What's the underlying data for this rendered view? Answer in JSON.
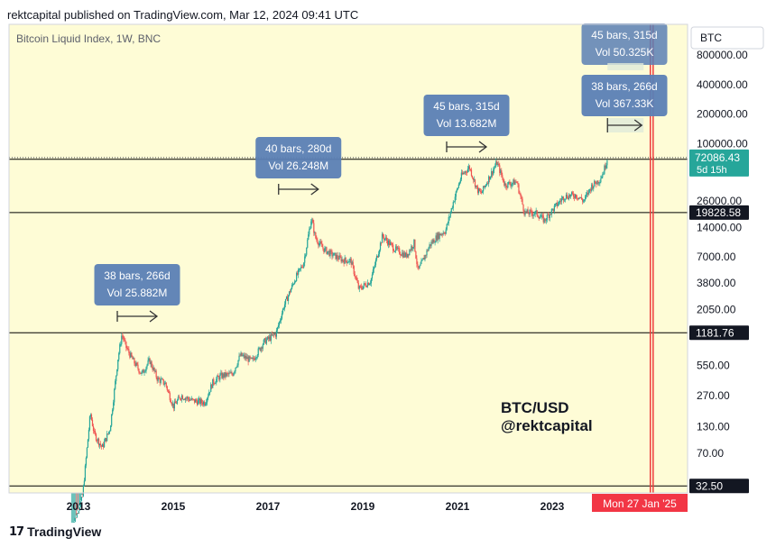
{
  "header": {
    "published_text": "rektcapital published on TradingView.com, Mar 12, 2024 09:41 UTC"
  },
  "footer": {
    "logo_glyph": "17",
    "brand": "TradingView"
  },
  "symbol_box": "BTC",
  "watermark": {
    "line1": "BTC/USD",
    "line2": "@rektcapital"
  },
  "colors": {
    "background": "#fefcd6",
    "up": "#26a69a",
    "down": "#ef5350",
    "callout": "#5b7fb5",
    "marker": "#ef3b3b"
  },
  "chart_data": {
    "type": "candlestick",
    "title": "Bitcoin Liquid Index, 1W, BNC",
    "scale": "log",
    "x_tick_labels": [
      "2013",
      "2015",
      "2017",
      "2019",
      "2021",
      "2023"
    ],
    "y_tick_labels": [
      {
        "label": "800000.00",
        "value": 800000
      },
      {
        "label": "400000.00",
        "value": 400000
      },
      {
        "label": "200000.00",
        "value": 200000
      },
      {
        "label": "100000.00",
        "value": 100000
      },
      {
        "label": "26000.00",
        "value": 26000
      },
      {
        "label": "14000.00",
        "value": 14000
      },
      {
        "label": "7000.00",
        "value": 7000
      },
      {
        "label": "3800.00",
        "value": 3800
      },
      {
        "label": "2050.00",
        "value": 2050
      },
      {
        "label": "550.00",
        "value": 550
      },
      {
        "label": "270.00",
        "value": 270
      },
      {
        "label": "130.00",
        "value": 130
      },
      {
        "label": "70.00",
        "value": 70
      }
    ],
    "horizontal_levels": [
      {
        "label": "69164.86",
        "value": 69164.86
      },
      {
        "label": "19828.58",
        "value": 19828.58
      },
      {
        "label": "1181.76",
        "value": 1181.76
      },
      {
        "label": "32.50",
        "value": 32.5
      }
    ],
    "current_price": {
      "label": "72086.43",
      "countdown": "5d 15h",
      "value": 72086.43
    },
    "cycle_annotations": [
      {
        "bars": "38 bars, 266d",
        "vol": "Vol 25.882M",
        "date": "2013-09"
      },
      {
        "bars": "40 bars, 280d",
        "vol": "Vol 26.248M",
        "date": "2017-03"
      },
      {
        "bars": "45 bars, 315d",
        "vol": "Vol 13.682M",
        "date": "2021-01"
      },
      {
        "bars": "38 bars, 266d",
        "vol": "Vol 367.33K",
        "date": "2024-05"
      },
      {
        "bars": "45 bars, 315d",
        "vol": "Vol 50.325K",
        "date": "2024-05"
      }
    ],
    "vertical_markers": [
      "2025-01-27",
      "2025-02-18"
    ],
    "date_label": "Mon 27 Jan '25",
    "price_path": [
      [
        "2012-11",
        11
      ],
      [
        "2013-02",
        25
      ],
      [
        "2013-04",
        180
      ],
      [
        "2013-05",
        110
      ],
      [
        "2013-07",
        80
      ],
      [
        "2013-09",
        125
      ],
      [
        "2013-11",
        650
      ],
      [
        "2013-12",
        1150
      ],
      [
        "2014-01",
        850
      ],
      [
        "2014-03",
        600
      ],
      [
        "2014-05",
        450
      ],
      [
        "2014-07",
        620
      ],
      [
        "2014-09",
        400
      ],
      [
        "2014-11",
        360
      ],
      [
        "2015-01",
        210
      ],
      [
        "2015-03",
        270
      ],
      [
        "2015-06",
        240
      ],
      [
        "2015-09",
        230
      ],
      [
        "2015-11",
        370
      ],
      [
        "2016-01",
        430
      ],
      [
        "2016-04",
        450
      ],
      [
        "2016-06",
        700
      ],
      [
        "2016-09",
        610
      ],
      [
        "2016-12",
        960
      ],
      [
        "2017-03",
        1150
      ],
      [
        "2017-05",
        2200
      ],
      [
        "2017-08",
        4300
      ],
      [
        "2017-10",
        6000
      ],
      [
        "2017-12",
        17500
      ],
      [
        "2018-01",
        11000
      ],
      [
        "2018-03",
        8500
      ],
      [
        "2018-05",
        7500
      ],
      [
        "2018-08",
        6500
      ],
      [
        "2018-10",
        6400
      ],
      [
        "2018-12",
        3300
      ],
      [
        "2019-03",
        4000
      ],
      [
        "2019-06",
        11500
      ],
      [
        "2019-09",
        8500
      ],
      [
        "2019-12",
        7200
      ],
      [
        "2020-02",
        9800
      ],
      [
        "2020-03",
        5000
      ],
      [
        "2020-06",
        9300
      ],
      [
        "2020-08",
        11500
      ],
      [
        "2020-10",
        13000
      ],
      [
        "2020-12",
        26000
      ],
      [
        "2021-02",
        47000
      ],
      [
        "2021-04",
        58000
      ],
      [
        "2021-06",
        34000
      ],
      [
        "2021-07",
        31000
      ],
      [
        "2021-09",
        45000
      ],
      [
        "2021-11",
        64000
      ],
      [
        "2022-01",
        38000
      ],
      [
        "2022-04",
        41000
      ],
      [
        "2022-06",
        19800
      ],
      [
        "2022-09",
        19500
      ],
      [
        "2022-11",
        16500
      ],
      [
        "2023-01",
        21000
      ],
      [
        "2023-04",
        29000
      ],
      [
        "2023-07",
        30000
      ],
      [
        "2023-09",
        26000
      ],
      [
        "2023-11",
        37000
      ],
      [
        "2024-01",
        43000
      ],
      [
        "2024-02",
        52000
      ],
      [
        "2024-03",
        72086
      ]
    ]
  }
}
